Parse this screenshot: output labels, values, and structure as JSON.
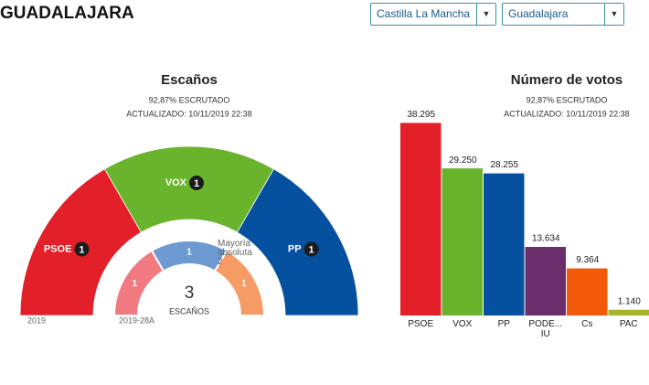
{
  "title": "GUADALAJARA",
  "selects": [
    "Castilla La Mancha",
    "Guadalajara"
  ],
  "chart_data": [
    {
      "type": "half-donut",
      "title": "Escaños",
      "subtitle": [
        "92,87% ESCRUTADO",
        "ACTUALIZADO: 10/11/2019 22:38"
      ],
      "series": [
        {
          "name": "2019",
          "categories": [
            "PSOE",
            "VOX",
            "PP"
          ],
          "colors": [
            "#e3202a",
            "#6ab42d",
            "#0650a0"
          ],
          "values": [
            1,
            1,
            1
          ]
        },
        {
          "name": "2019-28A",
          "colors": [
            "#f07a80",
            "#6d9bd1",
            "#f79b66"
          ],
          "values": [
            1,
            1,
            1
          ]
        }
      ],
      "total": 3,
      "total_label": "ESCAÑOS",
      "annotation": "Mayoría absoluta 2"
    },
    {
      "type": "bar",
      "title": "Número de votos",
      "subtitle": [
        "92,87% ESCRUTADO",
        "ACTUALIZADO: 10/11/2019 22:38"
      ],
      "categories": [
        "PSOE",
        "VOX",
        "PP",
        "PODE... IU",
        "Cs",
        "PAC"
      ],
      "values": [
        38295,
        29250,
        28255,
        13634,
        9364,
        1140
      ],
      "value_labels": [
        "38.295",
        "29.250",
        "28.255",
        "13.634",
        "9.364",
        "1.140"
      ],
      "colors": [
        "#e3202a",
        "#6ab42d",
        "#0650a0",
        "#6b2d6b",
        "#f25a0a",
        "#a5b52a"
      ],
      "ylim": [
        0,
        40000
      ]
    }
  ]
}
